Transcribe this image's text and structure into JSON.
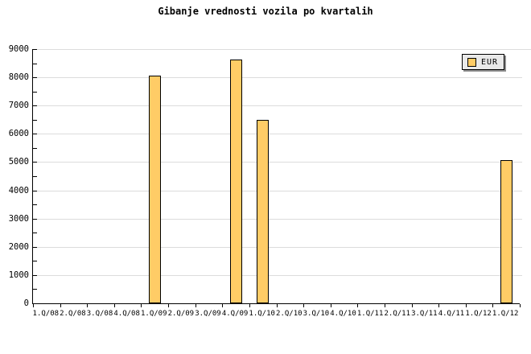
{
  "title": "Gibanje vrednosti vozila po kvartalih",
  "legend": {
    "label": "EUR",
    "swatch_color": "#FFCC66"
  },
  "colors": {
    "bar_fill": "#FFCC66",
    "bar_border": "#000000",
    "grid": "#DCDCDC",
    "axis": "#000000",
    "legend_bg": "#E9E9E9",
    "legend_shadow": "#8C8C8C",
    "background": "#FFFFFF"
  },
  "chart_data": {
    "type": "bar",
    "title": "Gibanje vrednosti vozila po kvartalih",
    "xlabel": "",
    "ylabel": "",
    "categories": [
      "1.Q/08",
      "2.Q/08",
      "3.Q/08",
      "4.Q/08",
      "1.Q/09",
      "2.Q/09",
      "3.Q/09",
      "4.Q/09",
      "1.Q/10",
      "2.Q/10",
      "3.Q/10",
      "4.Q/10",
      "1.Q/11",
      "2.Q/11",
      "3.Q/11",
      "4.Q/11",
      "1.Q/12",
      "1.Q/12"
    ],
    "series": [
      {
        "name": "EUR",
        "color": "#FFCC66",
        "values": [
          null,
          null,
          null,
          null,
          8050,
          null,
          null,
          8620,
          6480,
          null,
          null,
          null,
          null,
          null,
          null,
          null,
          null,
          5080
        ]
      }
    ],
    "ylim": [
      0,
      9000
    ],
    "ytick_step": 1000,
    "ytick_minor_step": 500,
    "grid": true,
    "legend_position": "top-right"
  }
}
